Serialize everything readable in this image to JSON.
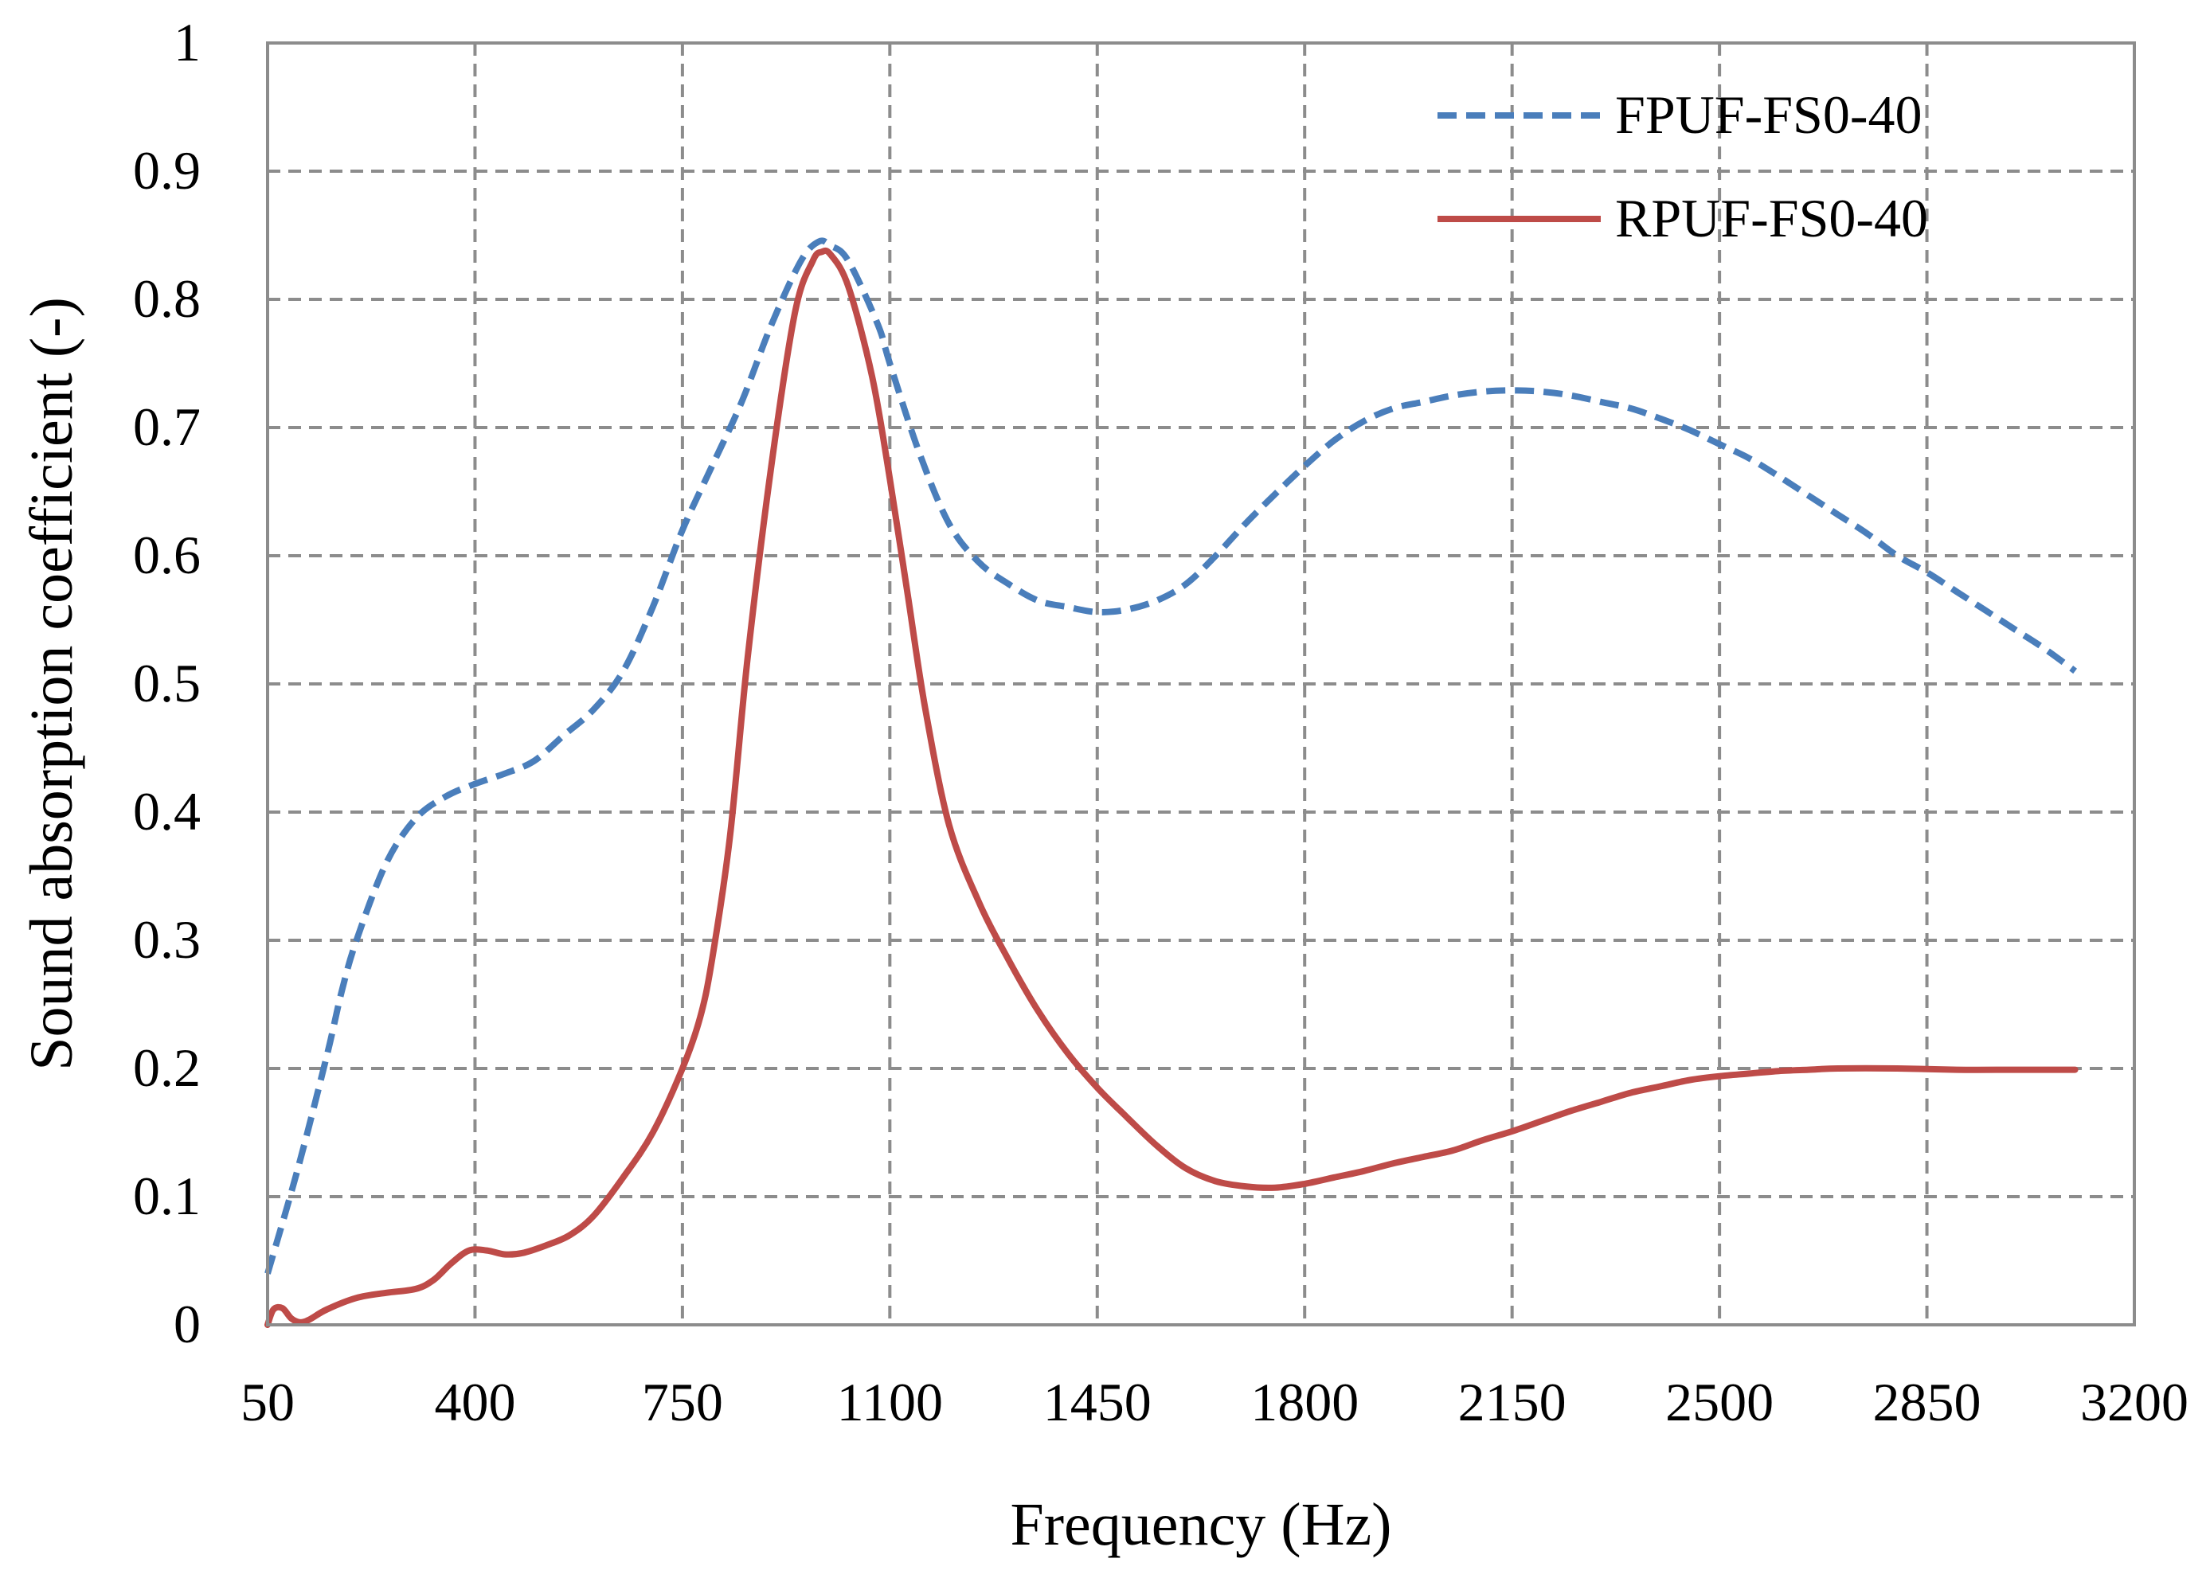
{
  "chart_data": {
    "type": "line",
    "xlabel": "Frequency (Hz)",
    "ylabel": "Sound absorption coefficient (-)",
    "xlim": [
      50,
      3200
    ],
    "ylim": [
      0,
      1
    ],
    "x_ticks": [
      "50",
      "400",
      "750",
      "1100",
      "1450",
      "1800",
      "2150",
      "2500",
      "2850",
      "3200"
    ],
    "y_ticks": [
      "0",
      "0.1",
      "0.2",
      "0.3",
      "0.4",
      "0.5",
      "0.6",
      "0.7",
      "0.8",
      "0.9",
      "1"
    ],
    "grid": true,
    "legend_position": "top-right",
    "series": [
      {
        "name": "FPUF-FS0-40",
        "color": "#4a7ebb",
        "style": "dashed",
        "points": [
          [
            50,
            0.04
          ],
          [
            100,
            0.12
          ],
          [
            150,
            0.21
          ],
          [
            175,
            0.26
          ],
          [
            200,
            0.3
          ],
          [
            250,
            0.36
          ],
          [
            300,
            0.395
          ],
          [
            350,
            0.412
          ],
          [
            400,
            0.422
          ],
          [
            450,
            0.43
          ],
          [
            500,
            0.44
          ],
          [
            550,
            0.46
          ],
          [
            600,
            0.48
          ],
          [
            650,
            0.51
          ],
          [
            700,
            0.56
          ],
          [
            750,
            0.62
          ],
          [
            800,
            0.67
          ],
          [
            850,
            0.72
          ],
          [
            900,
            0.78
          ],
          [
            950,
            0.83
          ],
          [
            980,
            0.845
          ],
          [
            1000,
            0.842
          ],
          [
            1030,
            0.83
          ],
          [
            1080,
            0.78
          ],
          [
            1100,
            0.75
          ],
          [
            1150,
            0.68
          ],
          [
            1200,
            0.625
          ],
          [
            1250,
            0.595
          ],
          [
            1300,
            0.578
          ],
          [
            1350,
            0.565
          ],
          [
            1400,
            0.56
          ],
          [
            1450,
            0.556
          ],
          [
            1500,
            0.558
          ],
          [
            1550,
            0.565
          ],
          [
            1600,
            0.578
          ],
          [
            1650,
            0.6
          ],
          [
            1700,
            0.625
          ],
          [
            1750,
            0.648
          ],
          [
            1800,
            0.67
          ],
          [
            1850,
            0.69
          ],
          [
            1900,
            0.705
          ],
          [
            1950,
            0.715
          ],
          [
            2000,
            0.72
          ],
          [
            2050,
            0.725
          ],
          [
            2100,
            0.728
          ],
          [
            2150,
            0.729
          ],
          [
            2200,
            0.728
          ],
          [
            2250,
            0.725
          ],
          [
            2300,
            0.72
          ],
          [
            2350,
            0.715
          ],
          [
            2400,
            0.707
          ],
          [
            2450,
            0.698
          ],
          [
            2500,
            0.687
          ],
          [
            2550,
            0.676
          ],
          [
            2600,
            0.662
          ],
          [
            2650,
            0.647
          ],
          [
            2700,
            0.632
          ],
          [
            2750,
            0.617
          ],
          [
            2800,
            0.6
          ],
          [
            2850,
            0.587
          ],
          [
            2900,
            0.572
          ],
          [
            2950,
            0.557
          ],
          [
            3000,
            0.542
          ],
          [
            3050,
            0.527
          ],
          [
            3100,
            0.51
          ]
        ]
      },
      {
        "name": "RPUF-FS0-40",
        "color": "#be4b48",
        "style": "solid",
        "points": [
          [
            50,
            0.0
          ],
          [
            60,
            0.012
          ],
          [
            75,
            0.013
          ],
          [
            90,
            0.005
          ],
          [
            105,
            0.002
          ],
          [
            120,
            0.004
          ],
          [
            150,
            0.012
          ],
          [
            200,
            0.021
          ],
          [
            250,
            0.025
          ],
          [
            300,
            0.028
          ],
          [
            330,
            0.035
          ],
          [
            360,
            0.048
          ],
          [
            390,
            0.058
          ],
          [
            420,
            0.058
          ],
          [
            450,
            0.055
          ],
          [
            480,
            0.056
          ],
          [
            520,
            0.062
          ],
          [
            560,
            0.07
          ],
          [
            600,
            0.085
          ],
          [
            650,
            0.115
          ],
          [
            700,
            0.15
          ],
          [
            750,
            0.2
          ],
          [
            780,
            0.24
          ],
          [
            800,
            0.285
          ],
          [
            830,
            0.38
          ],
          [
            860,
            0.52
          ],
          [
            900,
            0.67
          ],
          [
            940,
            0.79
          ],
          [
            970,
            0.83
          ],
          [
            985,
            0.837
          ],
          [
            1000,
            0.835
          ],
          [
            1030,
            0.81
          ],
          [
            1070,
            0.74
          ],
          [
            1100,
            0.66
          ],
          [
            1130,
            0.57
          ],
          [
            1160,
            0.48
          ],
          [
            1200,
            0.39
          ],
          [
            1250,
            0.33
          ],
          [
            1300,
            0.285
          ],
          [
            1350,
            0.245
          ],
          [
            1400,
            0.212
          ],
          [
            1450,
            0.185
          ],
          [
            1500,
            0.162
          ],
          [
            1550,
            0.14
          ],
          [
            1600,
            0.122
          ],
          [
            1650,
            0.112
          ],
          [
            1700,
            0.108
          ],
          [
            1750,
            0.107
          ],
          [
            1800,
            0.11
          ],
          [
            1850,
            0.115
          ],
          [
            1900,
            0.12
          ],
          [
            1950,
            0.126
          ],
          [
            2000,
            0.131
          ],
          [
            2050,
            0.136
          ],
          [
            2100,
            0.144
          ],
          [
            2150,
            0.151
          ],
          [
            2200,
            0.159
          ],
          [
            2250,
            0.167
          ],
          [
            2300,
            0.174
          ],
          [
            2350,
            0.181
          ],
          [
            2400,
            0.186
          ],
          [
            2450,
            0.191
          ],
          [
            2500,
            0.194
          ],
          [
            2550,
            0.196
          ],
          [
            2600,
            0.198
          ],
          [
            2650,
            0.199
          ],
          [
            2700,
            0.2
          ],
          [
            2800,
            0.2
          ],
          [
            2900,
            0.199
          ],
          [
            3000,
            0.199
          ],
          [
            3100,
            0.199
          ]
        ]
      }
    ]
  }
}
